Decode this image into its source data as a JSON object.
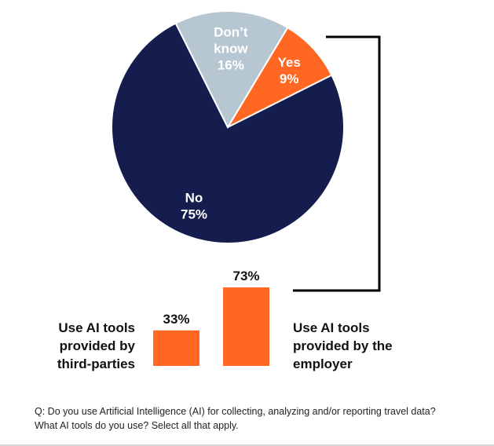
{
  "chart_data": [
    {
      "type": "pie",
      "slices": [
        {
          "label": "Yes",
          "value": 9,
          "display": "9%",
          "color": "#ff6722",
          "text_color": "#ffffff"
        },
        {
          "label": "No",
          "value": 75,
          "display": "75%",
          "color": "#151c4e",
          "text_color": "#ffffff"
        },
        {
          "label": "Don't know",
          "value": 16,
          "display": "16%",
          "color": "#b7c7d1",
          "text_color": "#ffffff"
        }
      ]
    },
    {
      "type": "bar",
      "categories": [
        "Use AI tools provided by third-parties",
        "Use AI tools provided by the employer"
      ],
      "values": [
        33,
        73
      ],
      "labels": [
        "33%",
        "73%"
      ],
      "color": "#ff6722",
      "ylim": [
        0,
        100
      ]
    }
  ],
  "left_label": "Use AI tools provided by third-parties",
  "right_label": "Use AI tools provided by the employer",
  "note_line1": "Q: Do you use Artificial Intelligence (AI) for collecting, analyzing and/or reporting travel data?",
  "note_line2": "What AI tools do you use? Select all that apply."
}
